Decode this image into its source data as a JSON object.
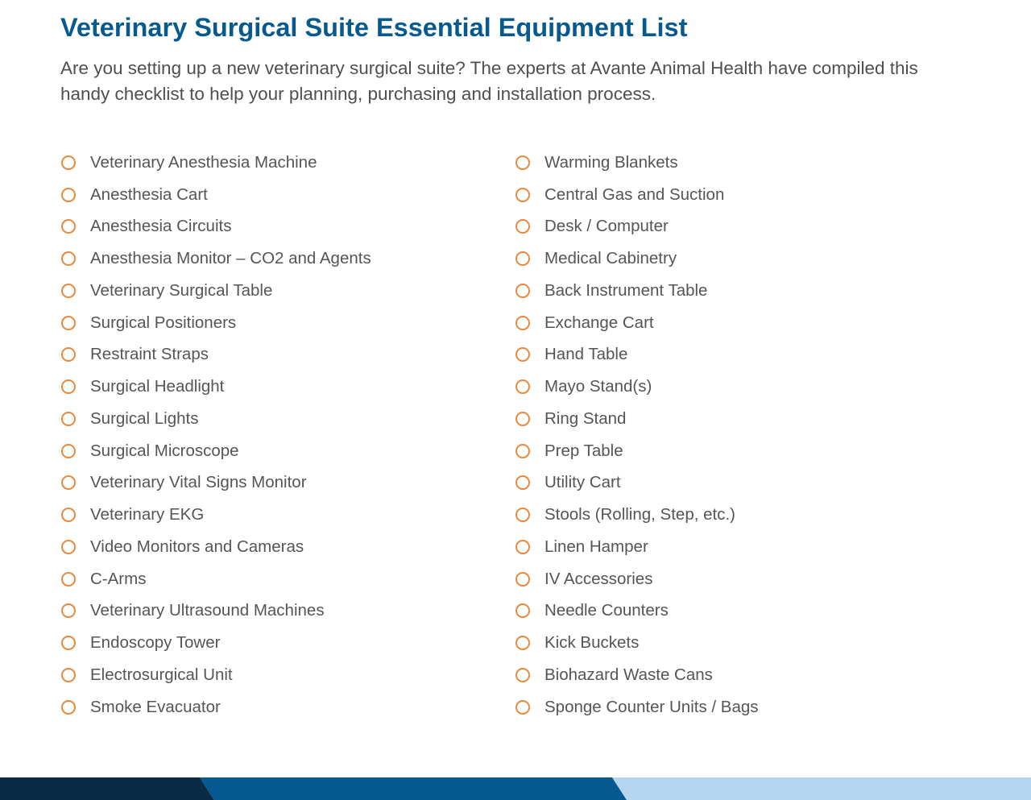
{
  "header": {
    "title": "Veterinary Surgical Suite Essential Equipment List",
    "intro": "Are you setting up a new veterinary surgical suite? The experts at Avante Animal Health have compiled this handy checklist to help your planning, purchasing and installation process."
  },
  "checklist": {
    "left": [
      "Veterinary Anesthesia Machine",
      "Anesthesia Cart",
      "Anesthesia Circuits",
      "Anesthesia Monitor – CO2 and Agents",
      "Veterinary Surgical Table",
      "Surgical Positioners",
      "Restraint Straps",
      "Surgical Headlight",
      "Surgical Lights",
      "Surgical Microscope",
      "Veterinary Vital Signs Monitor",
      "Veterinary EKG",
      "Video Monitors and Cameras",
      "C-Arms",
      "Veterinary Ultrasound Machines",
      "Endoscopy Tower",
      "Electrosurgical Unit",
      "Smoke Evacuator"
    ],
    "right": [
      "Warming Blankets",
      "Central Gas and Suction",
      "Desk / Computer",
      "Medical Cabinetry",
      "Back Instrument Table",
      "Exchange Cart",
      "Hand Table",
      "Mayo Stand(s)",
      "Ring Stand",
      "Prep Table",
      "Utility Cart",
      "Stools (Rolling, Step, etc.)",
      "Linen Hamper",
      "IV Accessories",
      "Needle Counters",
      "Kick Buckets",
      "Biohazard Waste Cans",
      "Sponge Counter Units / Bags"
    ]
  },
  "colors": {
    "title": "#075a8e",
    "body_text": "#555555",
    "intro_text": "#4f4f4f",
    "checkbox": "#e8883a",
    "band_dark": "#0b2a45",
    "band_mid": "#065a91",
    "band_light": "#b5d6ee"
  }
}
